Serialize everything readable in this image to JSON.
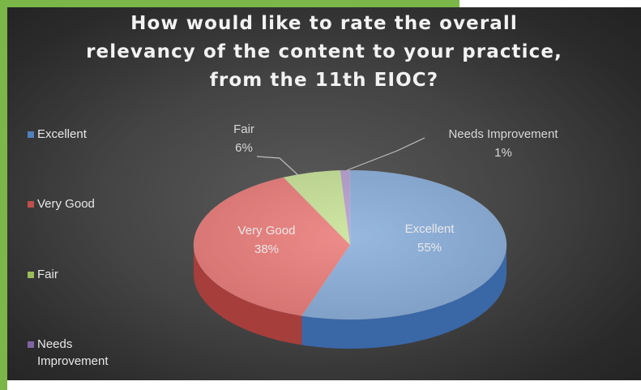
{
  "chart_data": {
    "type": "pie",
    "title_lines": [
      "How would like to rate the overall",
      "relevancy of the content to your practice,",
      "from the 11th EIOC?"
    ],
    "categories": [
      "Excellent",
      "Very Good",
      "Fair",
      "Needs Improvement"
    ],
    "values": [
      55,
      38,
      6,
      1
    ],
    "data_labels": [
      {
        "name": "Excellent",
        "pct": "55%"
      },
      {
        "name": "Very Good",
        "pct": "38%"
      },
      {
        "name": "Fair",
        "pct": "6%"
      },
      {
        "name": "Needs Improvement",
        "pct": "1%"
      }
    ],
    "legend": {
      "position": "left",
      "items": [
        {
          "lines": [
            "Excellent"
          ],
          "color": "#4f81bd"
        },
        {
          "lines": [
            "Very Good"
          ],
          "color": "#c0504d"
        },
        {
          "lines": [
            "Fair"
          ],
          "color": "#9bbb59"
        },
        {
          "lines": [
            "Needs",
            "Improvement"
          ],
          "color": "#8064a2"
        }
      ]
    },
    "colors": {
      "Excellent": {
        "top": "#8cb0dc",
        "mid": "#5a8ac8",
        "side": "#3a67a6"
      },
      "Very Good": {
        "top": "#ec7f7d",
        "mid": "#d85a57",
        "side": "#a63e3c"
      },
      "Fair": {
        "top": "#c9e39a",
        "mid": "#a9cb72",
        "side": "#7f9c4e"
      },
      "Needs Improvement": {
        "top": "#b8a2d2",
        "mid": "#9a82bc",
        "side": "#6e5790"
      }
    }
  }
}
